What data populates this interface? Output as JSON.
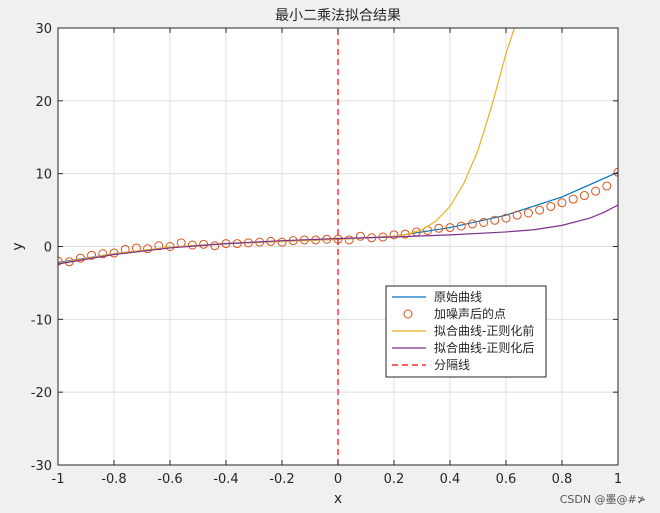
{
  "watermark": "CSDN @墨@#≯",
  "chart_data": {
    "type": "line",
    "title": "最小二乘法拟合结果",
    "xlabel": "x",
    "ylabel": "y",
    "xlim": [
      -1,
      1
    ],
    "ylim": [
      -30,
      30
    ],
    "xticks": [
      -1,
      -0.8,
      -0.6,
      -0.4,
      -0.2,
      0,
      0.2,
      0.4,
      0.6,
      0.8,
      1
    ],
    "xtick_labels": [
      "-1",
      "-0.8",
      "-0.6",
      "-0.4",
      "-0.2",
      "0",
      "0.2",
      "0.4",
      "0.6",
      "0.8",
      "1"
    ],
    "yticks": [
      -30,
      -20,
      -10,
      0,
      10,
      20,
      30
    ],
    "ytick_labels": [
      "-30",
      "-20",
      "-10",
      "0",
      "10",
      "20",
      "30"
    ],
    "grid": true,
    "legend_position": "lower-right",
    "series": [
      {
        "name": "原始曲线",
        "style": "line",
        "color": "#0072BD",
        "x": [
          -1,
          -0.8,
          -0.6,
          -0.4,
          -0.2,
          0,
          0.2,
          0.4,
          0.6,
          0.8,
          1
        ],
        "y": [
          -2.2,
          -1.0,
          -0.1,
          0.4,
          0.7,
          1.0,
          1.4,
          2.6,
          4.3,
          6.8,
          10.2
        ]
      },
      {
        "name": "加噪声后的点",
        "style": "markers",
        "color": "#D95319",
        "x": [
          -1,
          -0.96,
          -0.92,
          -0.88,
          -0.84,
          -0.8,
          -0.76,
          -0.72,
          -0.68,
          -0.64,
          -0.6,
          -0.56,
          -0.52,
          -0.48,
          -0.44,
          -0.4,
          -0.36,
          -0.32,
          -0.28,
          -0.24,
          -0.2,
          -0.16,
          -0.12,
          -0.08,
          -0.04,
          0,
          0.04,
          0.08,
          0.12,
          0.16,
          0.2,
          0.24,
          0.28,
          0.32,
          0.36,
          0.4,
          0.44,
          0.48,
          0.52,
          0.56,
          0.6,
          0.64,
          0.68,
          0.72,
          0.76,
          0.8,
          0.84,
          0.88,
          0.92,
          0.96,
          1
        ],
        "y": [
          -2.0,
          -2.1,
          -1.6,
          -1.2,
          -1.0,
          -0.9,
          -0.4,
          -0.2,
          -0.3,
          0.1,
          0.0,
          0.5,
          0.2,
          0.3,
          0.1,
          0.4,
          0.4,
          0.5,
          0.6,
          0.7,
          0.6,
          0.8,
          0.9,
          0.9,
          1.0,
          1.0,
          0.9,
          1.4,
          1.2,
          1.3,
          1.6,
          1.7,
          2.0,
          2.2,
          2.5,
          2.6,
          2.8,
          3.1,
          3.3,
          3.6,
          3.9,
          4.3,
          4.6,
          5.0,
          5.5,
          6.0,
          6.5,
          7.0,
          7.6,
          8.3,
          10.2
        ]
      },
      {
        "name": "拟合曲线-正则化前",
        "style": "line",
        "color": "#EDB120",
        "x": [
          -1,
          -0.8,
          -0.6,
          -0.4,
          -0.2,
          0,
          0.1,
          0.2,
          0.25,
          0.3,
          0.35,
          0.4,
          0.45,
          0.5,
          0.55,
          0.6,
          0.63
        ],
        "y": [
          -2.3,
          -1.0,
          -0.1,
          0.4,
          0.7,
          1.0,
          1.2,
          1.4,
          1.7,
          2.3,
          3.5,
          5.5,
          8.7,
          13.2,
          19.4,
          26.5,
          30
        ]
      },
      {
        "name": "拟合曲线-正则化后",
        "style": "line",
        "color": "#7E2F8E",
        "x": [
          -1,
          -0.8,
          -0.6,
          -0.4,
          -0.2,
          0,
          0.2,
          0.4,
          0.6,
          0.7,
          0.8,
          0.9,
          0.95,
          1
        ],
        "y": [
          -2.4,
          -1.1,
          -0.2,
          0.4,
          0.8,
          1.1,
          1.3,
          1.6,
          2.0,
          2.3,
          2.9,
          3.9,
          4.7,
          5.7
        ]
      },
      {
        "name": "分隔线",
        "style": "dashed",
        "color": "#FF0000",
        "x": [
          0,
          0
        ],
        "y": [
          -30,
          30
        ]
      }
    ]
  }
}
